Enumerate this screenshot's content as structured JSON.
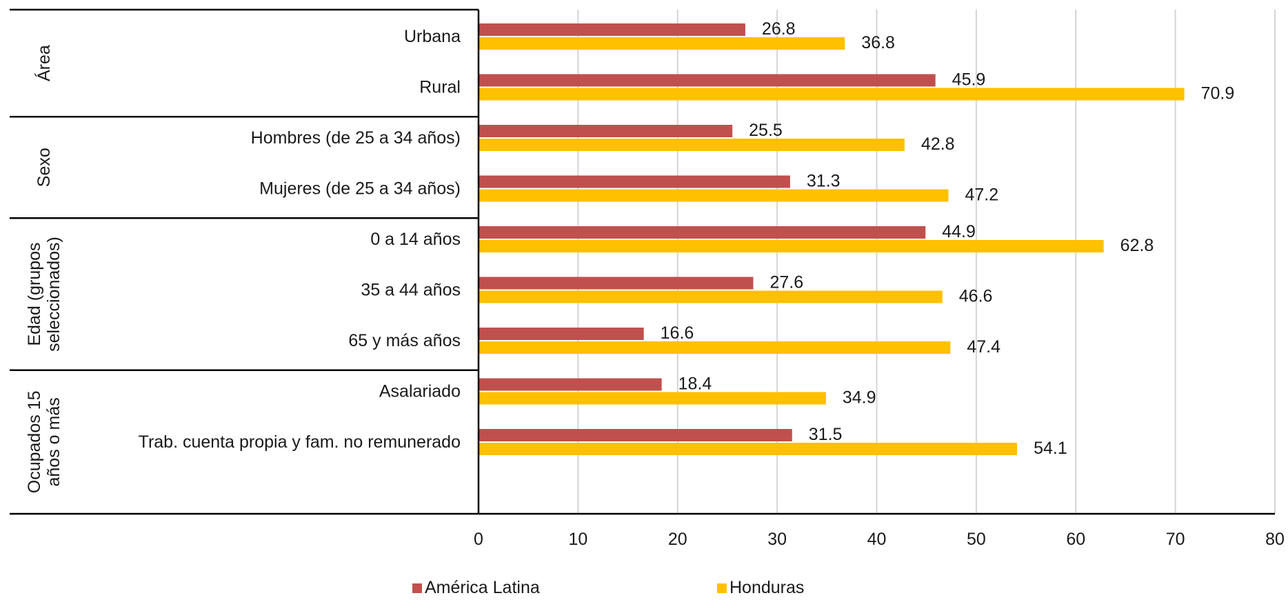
{
  "chart_data": {
    "type": "bar",
    "orientation": "horizontal",
    "groups": [
      {
        "name": "Área",
        "categories": [
          "Urbana",
          "Rural"
        ]
      },
      {
        "name": "Sexo",
        "categories": [
          "Hombres (de 25 a 34 años)",
          "Mujeres (de 25 a 34 años)"
        ]
      },
      {
        "name": "Edad (grupos seleccionados)",
        "categories": [
          "0 a 14 años",
          "35 a 44 años",
          "65 y más años"
        ]
      },
      {
        "name": "Ocupados 15 años o más",
        "categories": [
          "Asalariado",
          "Trab. cuenta propia y fam. no remunerado"
        ]
      }
    ],
    "categories": [
      "Urbana",
      "Rural",
      "Hombres (de 25 a 34 años)",
      "Mujeres (de 25 a 34 años)",
      "0 a 14 años",
      "35 a 44 años",
      "65 y más años",
      "Asalariado",
      "Trab. cuenta propia y fam. no remunerado"
    ],
    "series": [
      {
        "name": "América Latina",
        "color": "#c0504d",
        "values": [
          26.8,
          45.9,
          25.5,
          31.3,
          44.9,
          27.6,
          16.6,
          18.4,
          31.5
        ]
      },
      {
        "name": "Honduras",
        "color": "#ffc000",
        "values": [
          36.8,
          70.9,
          42.8,
          47.2,
          62.8,
          46.6,
          47.4,
          34.9,
          54.1
        ]
      }
    ],
    "xlim": [
      0,
      80
    ],
    "xticks": [
      0,
      10,
      20,
      30,
      40,
      50,
      60,
      70,
      80
    ],
    "grid": true,
    "legend_position": "bottom"
  }
}
